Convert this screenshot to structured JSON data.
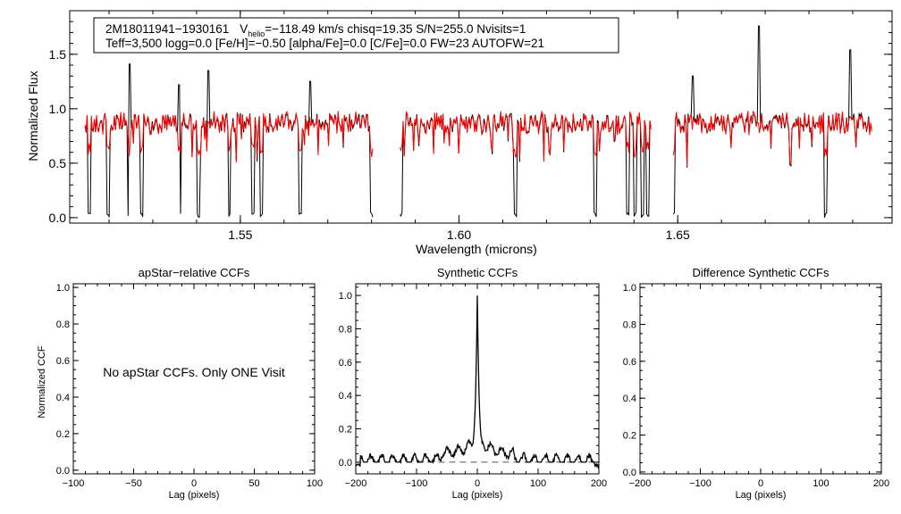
{
  "chart_data": [
    {
      "type": "line",
      "panel": "spectrum",
      "xlabel": "Wavelength (microns)",
      "ylabel": "Normalized Flux",
      "xlim": [
        1.511,
        1.699
      ],
      "ylim": [
        -0.05,
        1.9
      ],
      "xticks": [
        "1.55",
        "1.60",
        "1.65"
      ],
      "xtick_values": [
        1.55,
        1.6,
        1.65
      ],
      "yticks": [
        "0.0",
        "0.5",
        "1.0",
        "1.5"
      ],
      "ytick_values": [
        0.0,
        0.5,
        1.0,
        1.5
      ],
      "info_line1": {
        "star": "2M18011941−1930161",
        "v": "V",
        "v_sub": "helio",
        "v_value": "=−118.49 km/s  chisq=19.35  S/N=255.0  Nvisits=1"
      },
      "info_line2": "Teff=3,500 logg=0.0 [Fe/H]=−0.50 [alpha/Fe]=0.0 [C/Fe]=0.0 FW=23 AUTOFW=21",
      "chips": [
        [
          1.5145,
          1.5805
        ],
        [
          1.5865,
          1.644
        ],
        [
          1.649,
          1.6945
        ]
      ],
      "series": [
        {
          "name": "observed",
          "color": "#000000"
        },
        {
          "name": "synthetic",
          "color": "#ff0000"
        }
      ],
      "deep_lines": [
        1.5155,
        1.5197,
        1.5245,
        1.5275,
        1.536,
        1.5405,
        1.5475,
        1.553,
        1.5549,
        1.5638,
        1.58,
        1.5868,
        1.6129,
        1.6311,
        1.6385,
        1.6402,
        1.6419,
        1.6432,
        1.649,
        1.6838
      ],
      "spikes": [
        [
          1.5246,
          1.41
        ],
        [
          1.536,
          1.22
        ],
        [
          1.5428,
          1.35
        ],
        [
          1.566,
          1.25
        ],
        [
          1.6535,
          1.3
        ],
        [
          1.6685,
          1.76
        ],
        [
          1.6895,
          1.54
        ]
      ]
    },
    {
      "type": "line",
      "panel": "apStar-relative",
      "title": "apStar−relative CCFs",
      "xlabel": "Lag (pixels)",
      "ylabel": "Normalized CCF",
      "xlim": [
        -100,
        100
      ],
      "ylim": [
        -0.02,
        1.02
      ],
      "xticks": [
        "−100",
        "−50",
        "0",
        "50",
        "100"
      ],
      "xtick_values": [
        -100,
        -50,
        0,
        50,
        100
      ],
      "yticks": [
        "0.0",
        "0.2",
        "0.4",
        "0.6",
        "0.8",
        "1.0"
      ],
      "ytick_values": [
        0,
        0.2,
        0.4,
        0.6,
        0.8,
        1.0
      ],
      "annotation": "No apStar CCFs.  Only ONE Visit"
    },
    {
      "type": "line",
      "panel": "synthetic",
      "title": "Synthetic CCFs",
      "xlabel": "Lag (pixels)",
      "xlim": [
        -200,
        200
      ],
      "ylim": [
        -0.07,
        1.07
      ],
      "xticks": [
        "−200",
        "−100",
        "0",
        "100",
        "200"
      ],
      "xtick_values": [
        -200,
        -100,
        0,
        100,
        200
      ],
      "yticks": [
        "0.0",
        "0.2",
        "0.4",
        "0.6",
        "0.8",
        "1.0"
      ],
      "ytick_values": [
        0,
        0.2,
        0.4,
        0.6,
        0.8,
        1.0
      ],
      "reference_line": 0.0,
      "peak_lag": 0,
      "peak_value": 1.0
    },
    {
      "type": "line",
      "panel": "difference",
      "title": "Difference Synthetic CCFs",
      "xlabel": "Lag (pixels)",
      "xlim": [
        -200,
        200
      ],
      "ylim": [
        -0.01,
        1.02
      ],
      "xticks": [
        "−200",
        "−100",
        "0",
        "100",
        "200"
      ],
      "xtick_values": [
        -200,
        -100,
        0,
        100,
        200
      ],
      "yticks": [
        "0.0",
        "0.2",
        "0.4",
        "0.6",
        "0.8",
        "1.0"
      ],
      "ytick_values": [
        0,
        0.2,
        0.4,
        0.6,
        0.8,
        1.0
      ]
    }
  ]
}
